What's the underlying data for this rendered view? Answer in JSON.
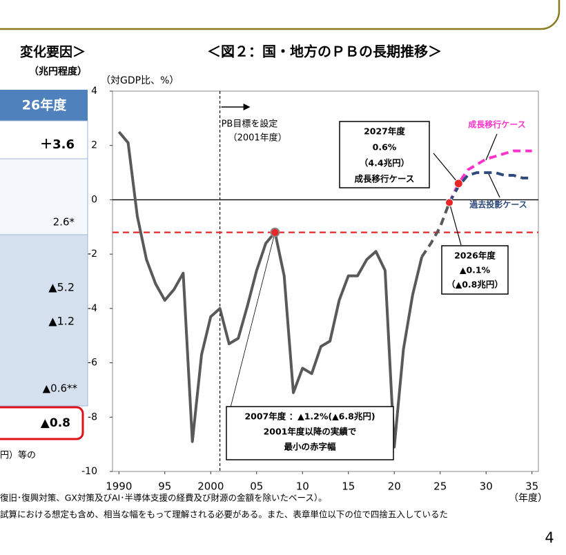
{
  "table": {
    "title": "変化要因＞",
    "unit": "（兆円程度）",
    "header": "26年度",
    "rows": [
      "＋3.6",
      "2.6*",
      "▲5.2",
      "▲1.2",
      "▲0.6**",
      "▲0.8"
    ],
    "note": "円）等の"
  },
  "chart_data": {
    "type": "line",
    "title": "＜図２：国・地方のＰＢの長期推移＞",
    "y_label": "（対GDP比、%）",
    "x_label": "（年度）",
    "x": [
      1990,
      1991,
      1992,
      1993,
      1994,
      1995,
      1996,
      1997,
      1998,
      1999,
      2000,
      2001,
      2002,
      2003,
      2004,
      2005,
      2006,
      2007,
      2008,
      2009,
      2010,
      2011,
      2012,
      2013,
      2014,
      2015,
      2016,
      2017,
      2018,
      2019,
      2020,
      2021,
      2022,
      2023,
      2024,
      2025,
      2026,
      2027,
      2028,
      2029,
      2030,
      2031,
      2032,
      2033,
      2034,
      2035
    ],
    "series": [
      {
        "color": "#595959",
        "dashed": false,
        "values": [
          2.5,
          2.1,
          -0.6,
          -2.2,
          -3.1,
          -3.7,
          -3.3,
          -2.7,
          -8.9,
          -5.7,
          -4.3,
          -4.0,
          -5.3,
          -5.1,
          -3.9,
          -2.6,
          -1.6,
          -1.2,
          -2.8,
          -7.1,
          -6.2,
          -6.4,
          -5.4,
          -5.2,
          -3.7,
          -2.8,
          -2.8,
          -2.2,
          -1.9,
          -2.6,
          -9.1,
          -5.5,
          -3.5,
          -2.1,
          null,
          null,
          null,
          null,
          null,
          null,
          null,
          null,
          null,
          null,
          null,
          null
        ]
      },
      {
        "color": "#595959",
        "dashed": true,
        "values": [
          null,
          null,
          null,
          null,
          null,
          null,
          null,
          null,
          null,
          null,
          null,
          null,
          null,
          null,
          null,
          null,
          null,
          null,
          null,
          null,
          null,
          null,
          null,
          null,
          null,
          null,
          null,
          null,
          null,
          null,
          null,
          null,
          null,
          -2.1,
          -1.6,
          -1.0,
          -0.1,
          null,
          null,
          null,
          null,
          null,
          null,
          null,
          null,
          null
        ]
      },
      {
        "name": "成長移行ケース",
        "color": "#ff33cc",
        "dashed": true,
        "values": [
          null,
          null,
          null,
          null,
          null,
          null,
          null,
          null,
          null,
          null,
          null,
          null,
          null,
          null,
          null,
          null,
          null,
          null,
          null,
          null,
          null,
          null,
          null,
          null,
          null,
          null,
          null,
          null,
          null,
          null,
          null,
          null,
          null,
          null,
          null,
          null,
          -0.1,
          0.6,
          1.1,
          1.3,
          1.5,
          1.6,
          1.7,
          1.8,
          1.8,
          1.8
        ]
      },
      {
        "name": "過去投影ケース",
        "color": "#2e4a7a",
        "dashed": true,
        "values": [
          null,
          null,
          null,
          null,
          null,
          null,
          null,
          null,
          null,
          null,
          null,
          null,
          null,
          null,
          null,
          null,
          null,
          null,
          null,
          null,
          null,
          null,
          null,
          null,
          null,
          null,
          null,
          null,
          null,
          null,
          null,
          null,
          null,
          null,
          null,
          null,
          -0.1,
          0.5,
          0.9,
          1.0,
          1.0,
          1.0,
          0.9,
          0.9,
          0.8,
          0.8
        ]
      }
    ],
    "xlim": [
      1989.3,
      2035.7
    ],
    "xticks": [
      1990,
      {
        "value": 1995,
        "label": "95"
      },
      2000,
      {
        "value": 2005,
        "label": "05"
      },
      {
        "value": 2010,
        "label": "10"
      },
      {
        "value": 2015,
        "label": "15"
      },
      {
        "value": 2020,
        "label": "20"
      },
      {
        "value": 2025,
        "label": "25"
      },
      {
        "value": 2030,
        "label": "30"
      },
      {
        "value": 2035,
        "label": "35"
      }
    ],
    "ylim": [
      -10,
      4
    ],
    "yticks": [
      -10,
      -8,
      -6,
      -4,
      -2,
      0,
      2,
      4
    ],
    "target_line": {
      "value": -1.2,
      "color": "#e8262a"
    },
    "target_year": 2001,
    "annotations": {
      "target": [
        "PB目標を設定",
        "（2001年度）"
      ],
      "box2027": [
        "2027年度",
        "0.6%",
        "（4.4兆円）",
        "成長移行ケース"
      ],
      "box2026": [
        "2026年度",
        "▲0.1%",
        "（▲0.8兆円）"
      ],
      "box2007": [
        "2007年度 ：▲1.2%(▲6.8兆円)",
        "2001年度以降の実績で",
        "最小の赤字幅"
      ]
    }
  },
  "notes": [
    "復旧･復興対策、GX対策及びAI･半導体支援の経費及び財源の金額を除いたベース）。",
    "試算における想定も含め、相当な幅をもって理解される必要がある。また、表章単位以下の位で四捨五入しているた"
  ],
  "page_number": "4"
}
